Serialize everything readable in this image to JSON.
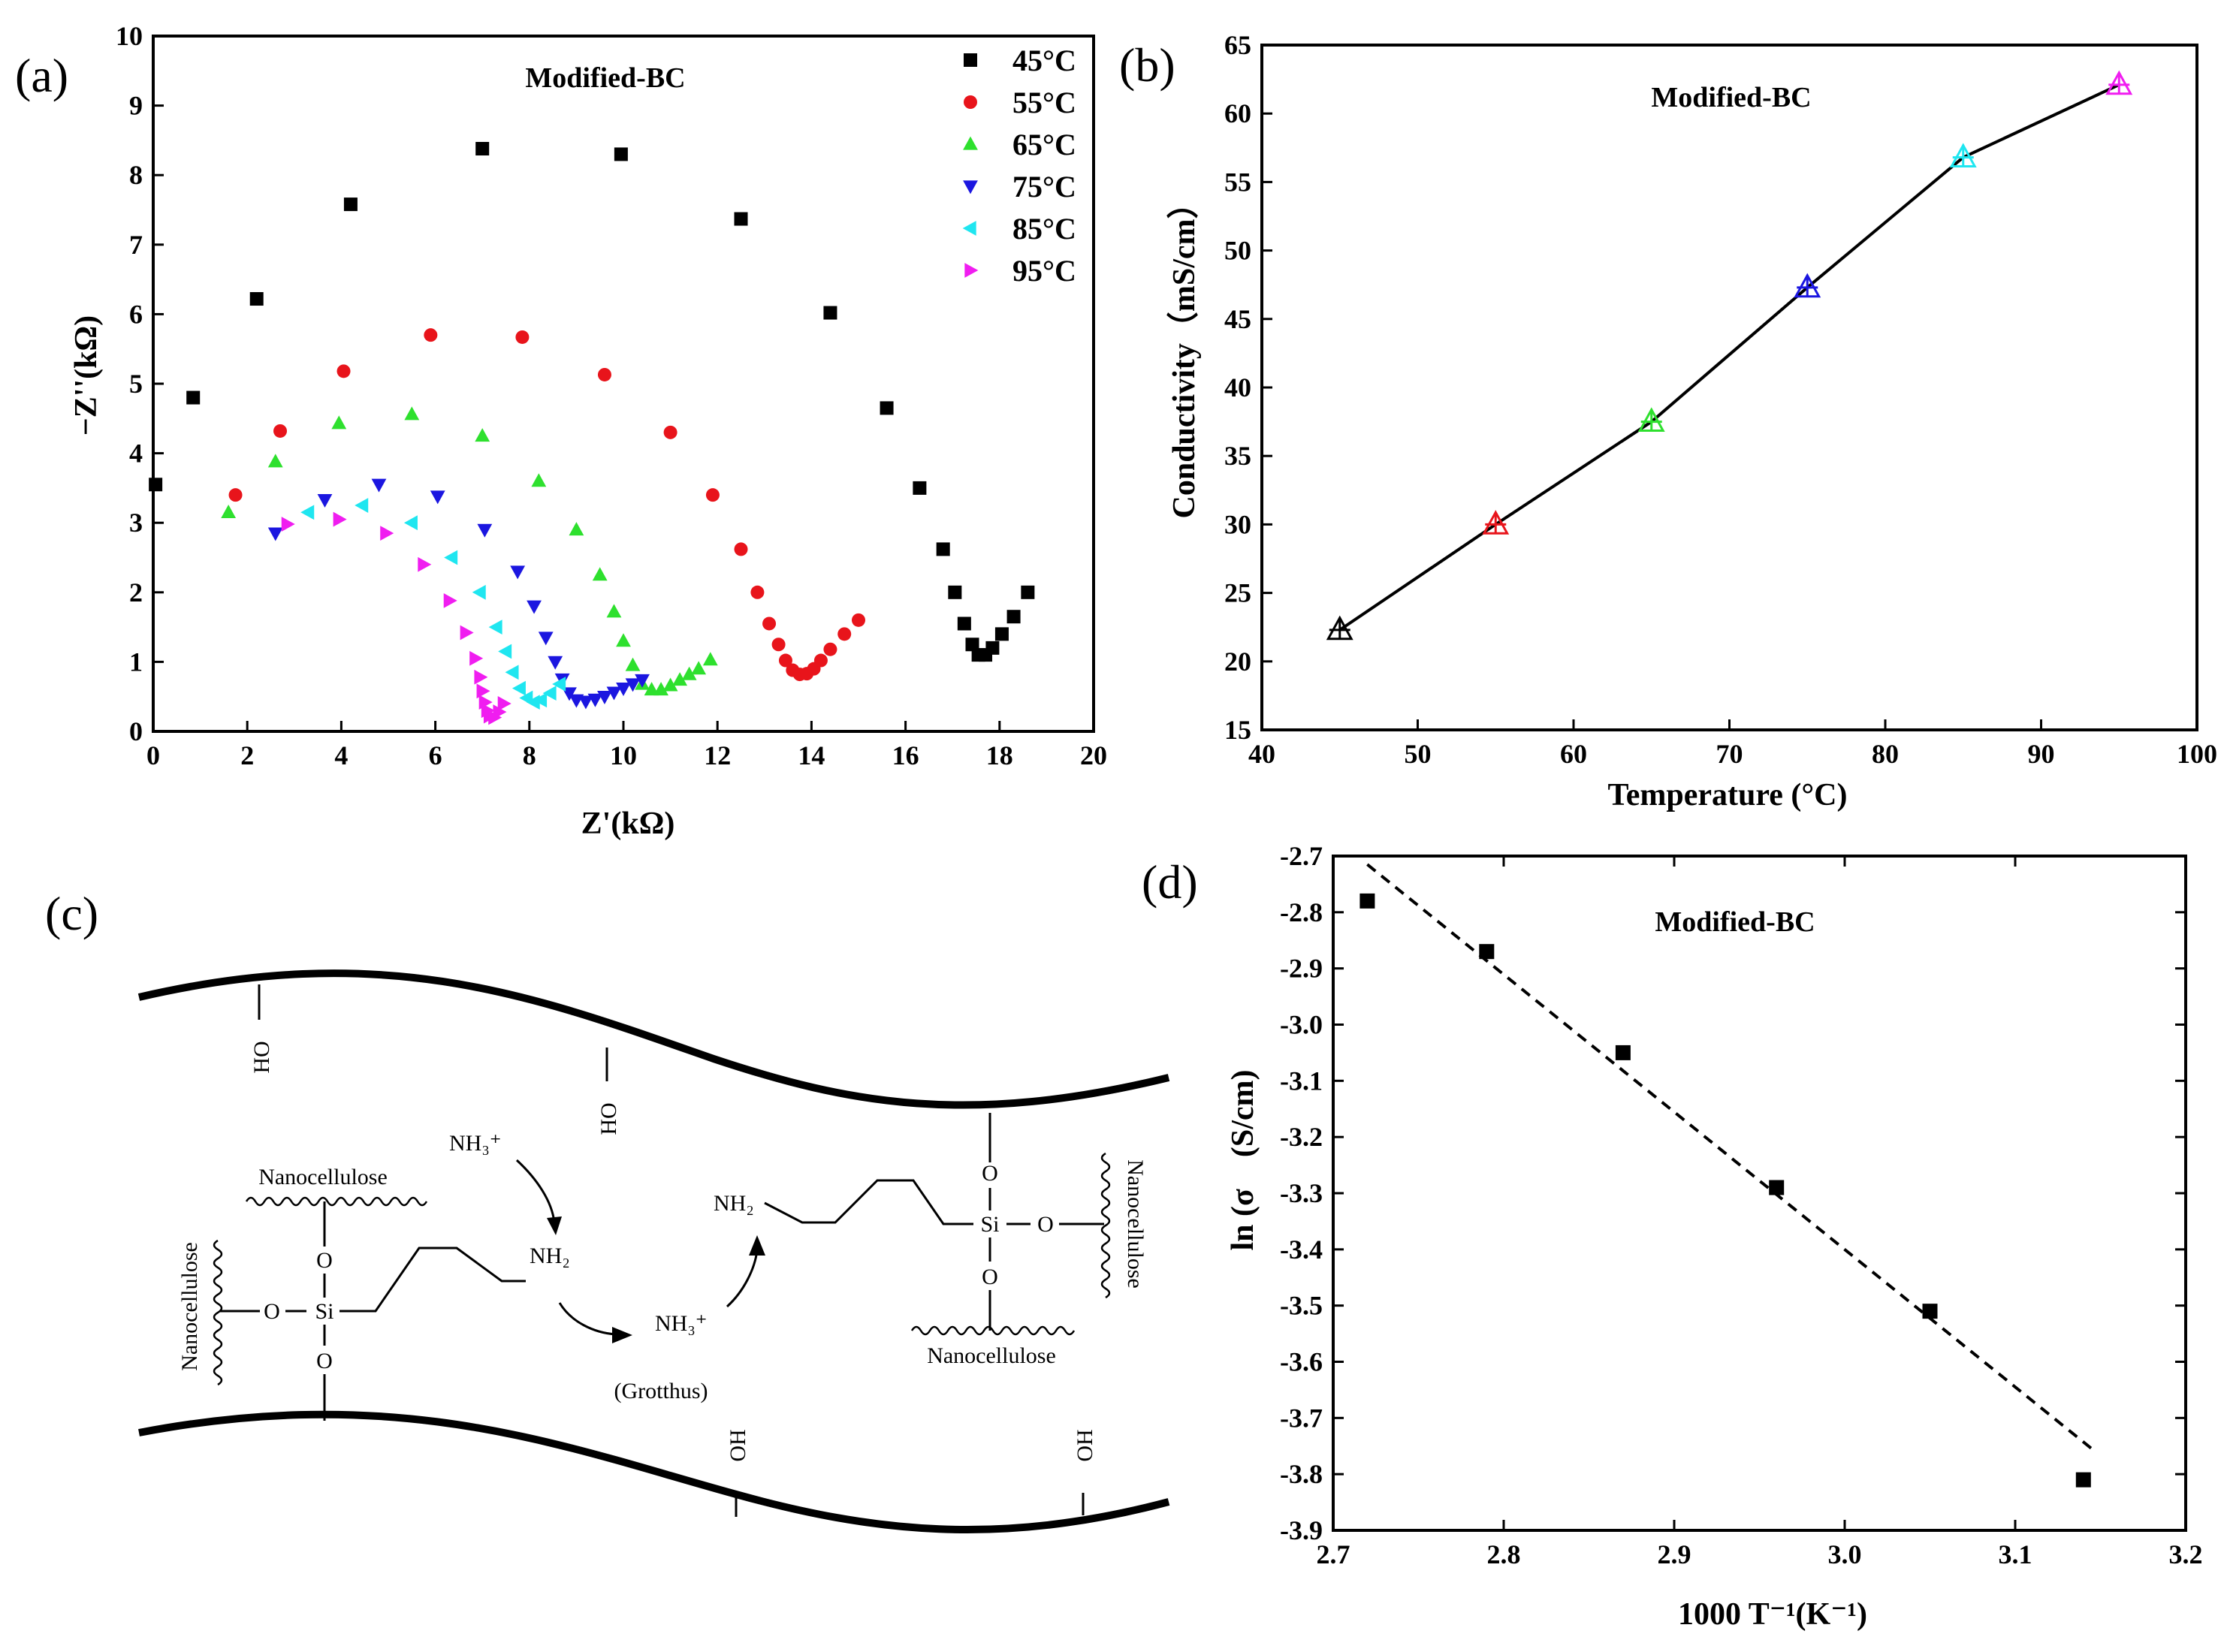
{
  "chart_data": [
    {
      "panel": "(a)",
      "type": "scatter",
      "title": "Modified-BC",
      "xlabel": "Z'(kΩ)",
      "ylabel": "−Z''(kΩ)",
      "xlim": [
        0,
        20
      ],
      "ylim": [
        0,
        10
      ],
      "xticks": [
        "0",
        "2",
        "4",
        "6",
        "8",
        "10",
        "12",
        "14",
        "16",
        "18",
        "20"
      ],
      "yticks": [
        "0",
        "1",
        "2",
        "3",
        "4",
        "5",
        "6",
        "7",
        "8",
        "9",
        "10"
      ],
      "legend_position": "top-right",
      "series": [
        {
          "name": "45°C",
          "marker": "square",
          "color": "#000000",
          "x": [
            0.05,
            0.85,
            2.2,
            4.2,
            7.0,
            9.95,
            12.5,
            14.4,
            15.6,
            16.3,
            16.8,
            17.05,
            17.25,
            17.42,
            17.55,
            17.7,
            17.85,
            18.05,
            18.3,
            18.6
          ],
          "y": [
            3.55,
            4.8,
            6.22,
            7.58,
            8.38,
            8.3,
            7.37,
            6.02,
            4.65,
            3.5,
            2.62,
            2.0,
            1.55,
            1.25,
            1.1,
            1.1,
            1.2,
            1.4,
            1.65,
            2.0
          ]
        },
        {
          "name": "55°C",
          "marker": "circle",
          "color": "#e8141b",
          "x": [
            1.75,
            2.7,
            4.05,
            5.9,
            7.85,
            9.6,
            11.0,
            11.9,
            12.5,
            12.85,
            13.1,
            13.3,
            13.45,
            13.6,
            13.75,
            13.9,
            14.05,
            14.2,
            14.4,
            14.7,
            15.0
          ],
          "y": [
            3.4,
            4.32,
            5.18,
            5.7,
            5.67,
            5.13,
            4.3,
            3.4,
            2.62,
            2.0,
            1.55,
            1.25,
            1.02,
            0.88,
            0.82,
            0.83,
            0.9,
            1.02,
            1.18,
            1.4,
            1.6
          ],
          "from_picture": true
        },
        {
          "name": "65°C",
          "marker": "triangle-up",
          "color": "#2ee02e",
          "x": [
            1.6,
            2.6,
            3.95,
            5.5,
            7.0,
            8.2,
            9.0,
            9.5,
            9.8,
            10.0,
            10.2,
            10.4,
            10.6,
            10.8,
            11.0,
            11.2,
            11.4,
            11.6,
            11.85
          ],
          "y": [
            3.15,
            3.88,
            4.43,
            4.56,
            4.25,
            3.6,
            2.9,
            2.25,
            1.72,
            1.3,
            0.95,
            0.68,
            0.6,
            0.6,
            0.66,
            0.74,
            0.82,
            0.9,
            1.03
          ]
        },
        {
          "name": "75°C",
          "marker": "triangle-down",
          "color": "#1b16e0",
          "x": [
            2.6,
            3.65,
            4.8,
            6.05,
            7.05,
            7.75,
            8.1,
            8.35,
            8.55,
            8.7,
            8.85,
            9.0,
            9.2,
            9.4,
            9.6,
            9.8,
            10.0,
            10.2,
            10.4
          ],
          "y": [
            2.85,
            3.33,
            3.55,
            3.38,
            2.9,
            2.3,
            1.8,
            1.35,
            1.0,
            0.75,
            0.55,
            0.45,
            0.43,
            0.46,
            0.5,
            0.56,
            0.62,
            0.68,
            0.74
          ]
        },
        {
          "name": "85°C",
          "marker": "triangle-left",
          "color": "#1fe6f0",
          "x": [
            3.3,
            4.45,
            5.5,
            6.35,
            6.95,
            7.3,
            7.5,
            7.65,
            7.8,
            7.95,
            8.1,
            8.25,
            8.45,
            8.65
          ],
          "y": [
            3.15,
            3.25,
            3.0,
            2.5,
            2.0,
            1.5,
            1.15,
            0.85,
            0.62,
            0.48,
            0.42,
            0.45,
            0.55,
            0.68
          ]
        },
        {
          "name": "95°C",
          "marker": "triangle-right",
          "color": "#f01df0",
          "x": [
            2.85,
            3.95,
            4.95,
            5.75,
            6.3,
            6.65,
            6.85,
            6.95,
            7.0,
            7.05,
            7.1,
            7.15,
            7.25,
            7.35,
            7.45
          ],
          "y": [
            2.98,
            3.05,
            2.85,
            2.4,
            1.88,
            1.42,
            1.05,
            0.78,
            0.58,
            0.42,
            0.3,
            0.22,
            0.2,
            0.28,
            0.4
          ]
        }
      ]
    },
    {
      "panel": "(b)",
      "type": "line",
      "title": "Modified-BC",
      "xlabel": "Temperature (°C)",
      "ylabel": "Conductivity（mS/cm）",
      "xlim": [
        40,
        100
      ],
      "ylim": [
        15,
        65
      ],
      "xticks": [
        "40",
        "50",
        "60",
        "70",
        "80",
        "90",
        "100"
      ],
      "yticks": [
        "15",
        "20",
        "25",
        "30",
        "35",
        "40",
        "45",
        "50",
        "55",
        "60",
        "65"
      ],
      "x": [
        45,
        55,
        65,
        75,
        85,
        95
      ],
      "y": [
        22.3,
        30.0,
        37.5,
        47.3,
        56.8,
        62.1
      ],
      "point_colors": [
        "#000000",
        "#e8141b",
        "#2ee02e",
        "#1b16e0",
        "#1fe6f0",
        "#f01df0"
      ]
    },
    {
      "panel": "(d)",
      "type": "scatter",
      "title": "Modified-BC",
      "xlabel": "1000 T⁻¹(K⁻¹)",
      "ylabel": "ln (σ　(S/cm)",
      "xlim": [
        2.7,
        3.2
      ],
      "ylim": [
        -3.9,
        -2.7
      ],
      "xticks": [
        "2.7",
        "2.8",
        "2.9",
        "3.0",
        "3.1",
        "3.2"
      ],
      "yticks": [
        "-2.7",
        "-2.8",
        "-2.9",
        "-3.0",
        "-3.1",
        "-3.2",
        "-3.3",
        "-3.4",
        "-3.5",
        "-3.6",
        "-3.7",
        "-3.8",
        "-3.9"
      ],
      "x": [
        2.72,
        2.79,
        2.87,
        2.96,
        3.05,
        3.14
      ],
      "y": [
        -2.78,
        -2.87,
        -3.05,
        -3.29,
        -3.51,
        -3.81
      ],
      "fit_line": {
        "x": [
          2.72,
          3.145
        ],
        "y": [
          -2.715,
          -3.755
        ]
      }
    }
  ],
  "panel_letters": {
    "a": "(a)",
    "b": "(b)",
    "c": "(c)",
    "d": "(d)"
  },
  "scheme": {
    "ho_1": "HO",
    "ho_2": "HO",
    "oh_1": "OH",
    "oh_2": "OH",
    "nanocellulose_top_left": "Nanocellulose",
    "nanocellulose_side_left": "Nanocellulose",
    "nanocellulose_side_right": "Nanocellulose",
    "nanocellulose_bottom_right": "Nanocellulose",
    "o": "O",
    "si": "Si",
    "nh3_top": "NH₃⁺",
    "nh2_left": "NH₂",
    "nh3_mid": "NH₃⁺",
    "nh2_right": "NH₂",
    "grotthus": "(Grotthus)"
  }
}
